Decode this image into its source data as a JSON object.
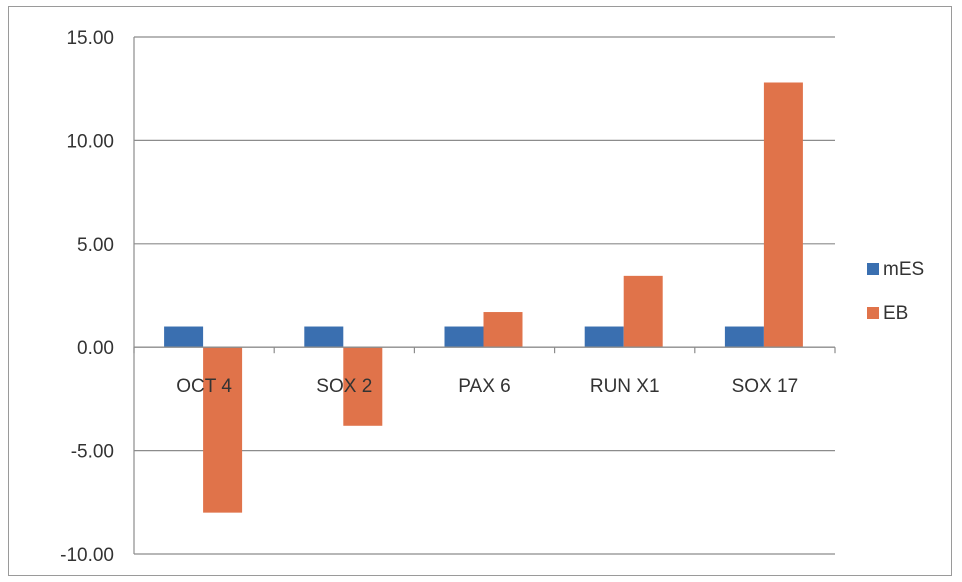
{
  "chart_data": {
    "type": "bar",
    "title": "",
    "xlabel": "",
    "ylabel": "",
    "categories": [
      "OCT 4",
      "SOX 2",
      "PAX 6",
      "RUN X1",
      "SOX 17"
    ],
    "series": [
      {
        "name": "mES",
        "color": "#3a6fb0",
        "values": [
          1.0,
          1.0,
          1.0,
          1.0,
          1.0
        ]
      },
      {
        "name": "EB",
        "color": "#e0734a",
        "values": [
          -8.0,
          -3.8,
          1.7,
          3.45,
          12.8
        ]
      }
    ],
    "ylim": [
      -10,
      15
    ],
    "yticks": [
      15,
      10,
      5,
      0,
      -5,
      -10
    ],
    "ytick_labels": [
      "15.00",
      "10.00",
      "5.00",
      "0.00",
      "-5.00",
      "-10.00"
    ],
    "grid": true,
    "legend_position": "right"
  }
}
